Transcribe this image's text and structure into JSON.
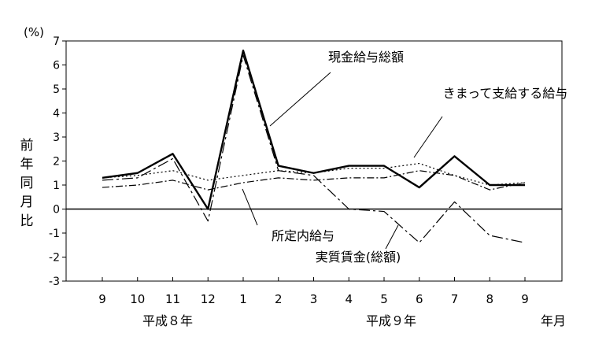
{
  "chart_data": {
    "type": "line",
    "unit_label": "(%)",
    "ylabel": "前年同月比",
    "xlabel": "年月",
    "ylim": [
      -3,
      7
    ],
    "yticks": [
      "7",
      "6",
      "5",
      "4",
      "3",
      "2",
      "1",
      "0",
      "-1",
      "-2",
      "-3"
    ],
    "categories": [
      "9",
      "10",
      "11",
      "12",
      "1",
      "2",
      "3",
      "4",
      "5",
      "6",
      "7",
      "8",
      "9"
    ],
    "year_labels": [
      "平成８年",
      "平成９年"
    ],
    "grid": false,
    "legend": "annotations",
    "series": [
      {
        "name": "現金給与総額",
        "style": "solid-thick",
        "color": "#000000",
        "values": [
          1.3,
          1.5,
          2.3,
          0.0,
          6.6,
          1.8,
          1.5,
          1.8,
          1.8,
          0.9,
          2.2,
          1.0,
          1.0
        ]
      },
      {
        "name": "きまって支給する給与",
        "style": "dotted",
        "color": "#000000",
        "values": [
          1.3,
          1.4,
          1.6,
          1.2,
          1.4,
          1.6,
          1.5,
          1.7,
          1.7,
          1.9,
          1.4,
          1.0,
          1.1
        ]
      },
      {
        "name": "所定内給与",
        "style": "dash-dot",
        "color": "#000000",
        "values": [
          0.9,
          1.0,
          1.2,
          0.8,
          1.1,
          1.3,
          1.2,
          1.3,
          1.3,
          1.6,
          1.4,
          0.8,
          1.1
        ]
      },
      {
        "name": "実質賃金(総額)",
        "style": "long-dash-dot",
        "color": "#000000",
        "values": [
          1.2,
          1.3,
          2.1,
          -0.5,
          6.4,
          1.6,
          1.4,
          0.0,
          -0.1,
          -1.4,
          0.3,
          -1.1,
          -1.4
        ]
      }
    ]
  }
}
